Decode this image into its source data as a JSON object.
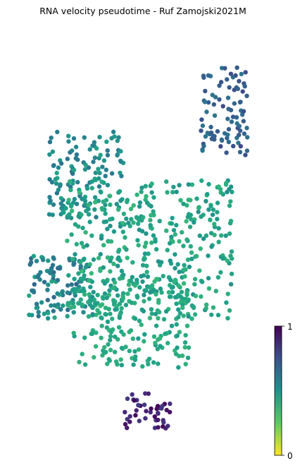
{
  "chart_data": {
    "type": "scatter",
    "title": "RNA velocity pseudotime - Ruf Zamojski2021M",
    "xlabel": "",
    "ylabel": "",
    "axes_visible": false,
    "grid": false,
    "colormap": "viridis",
    "color_range": [
      0,
      1
    ],
    "colorbar": {
      "placement": "bottom-right",
      "tick_labels": [
        "0",
        "1"
      ]
    },
    "clusters": [
      {
        "region": "top-right arm",
        "x_range": [
          0.72,
          0.9
        ],
        "y_range": [
          0.7,
          0.92
        ],
        "pseudotime_range": [
          0.6,
          0.78
        ]
      },
      {
        "region": "upper-left arm",
        "x_range": [
          0.13,
          0.42
        ],
        "y_range": [
          0.55,
          0.76
        ],
        "pseudotime_range": [
          0.42,
          0.62
        ]
      },
      {
        "region": "left lower arm",
        "x_range": [
          0.05,
          0.3
        ],
        "y_range": [
          0.3,
          0.46
        ],
        "pseudotime_range": [
          0.4,
          0.68
        ]
      },
      {
        "region": "central mass",
        "x_range": [
          0.2,
          0.84
        ],
        "y_range": [
          0.3,
          0.64
        ],
        "pseudotime_range": [
          0.33,
          0.5
        ]
      },
      {
        "region": "lower loop",
        "x_range": [
          0.22,
          0.7
        ],
        "y_range": [
          0.18,
          0.4
        ],
        "pseudotime_range": [
          0.34,
          0.46
        ]
      },
      {
        "region": "bottom cluster",
        "x_range": [
          0.42,
          0.6
        ],
        "y_range": [
          0.03,
          0.12
        ],
        "pseudotime_range": [
          0.82,
          1.0
        ]
      }
    ]
  }
}
